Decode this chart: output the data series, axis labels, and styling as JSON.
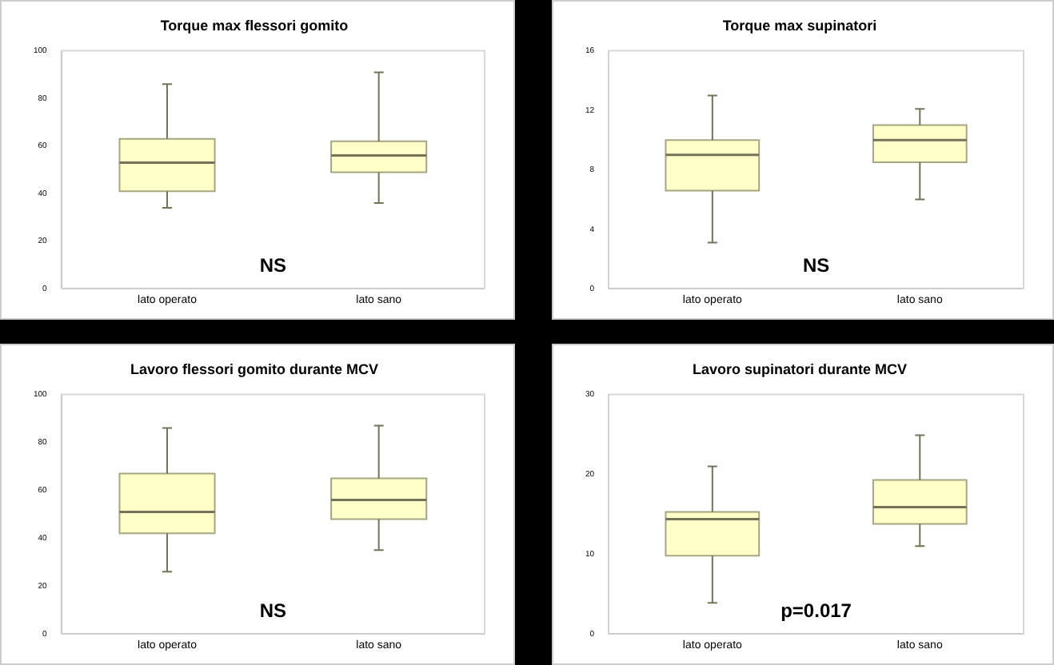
{
  "chart_data": [
    {
      "type": "box",
      "title": "Torque max flessori gomito",
      "categories": [
        "lato operato",
        "lato sano"
      ],
      "ylim": [
        0,
        100
      ],
      "yticks": [
        0,
        20,
        40,
        60,
        80,
        100
      ],
      "grid": false,
      "annotations": [
        "NS"
      ],
      "series": [
        {
          "color": "#ffffc8",
          "boxes": [
            {
              "low": 34,
              "q1": 41,
              "median": 53,
              "q3": 63,
              "high": 86
            },
            {
              "low": 36,
              "q1": 49,
              "median": 56,
              "q3": 62,
              "high": 91
            }
          ]
        }
      ]
    },
    {
      "type": "box",
      "title": "Torque max supinatori",
      "categories": [
        "lato operato",
        "lato sano"
      ],
      "ylim": [
        0,
        16
      ],
      "yticks": [
        0,
        4,
        8,
        12,
        16
      ],
      "grid": false,
      "annotations": [
        "NS"
      ],
      "series": [
        {
          "color": "#ffffc8",
          "boxes": [
            {
              "low": 3.1,
              "q1": 6.6,
              "median": 9,
              "q3": 10,
              "high": 13
            },
            {
              "low": 6,
              "q1": 8.5,
              "median": 10,
              "q3": 11,
              "high": 12.1
            }
          ]
        }
      ]
    },
    {
      "type": "box",
      "title": "Lavoro flessori gomito durante MCV",
      "categories": [
        "lato operato",
        "lato sano"
      ],
      "ylim": [
        0,
        100
      ],
      "yticks": [
        0,
        20,
        40,
        60,
        80,
        100
      ],
      "grid": false,
      "annotations": [
        "NS"
      ],
      "series": [
        {
          "color": "#ffffc8",
          "boxes": [
            {
              "low": 26,
              "q1": 42,
              "median": 51,
              "q3": 67,
              "high": 86
            },
            {
              "low": 35,
              "q1": 48,
              "median": 56,
              "q3": 65,
              "high": 87
            }
          ]
        }
      ]
    },
    {
      "type": "box",
      "title": "Lavoro supinatori durante MCV",
      "categories": [
        "lato operato",
        "lato sano"
      ],
      "ylim": [
        0,
        30
      ],
      "yticks": [
        0,
        10,
        20,
        30
      ],
      "grid": false,
      "annotations": [
        "p=0.017"
      ],
      "series": [
        {
          "color": "#ffffc8",
          "boxes": [
            {
              "low": 3.9,
              "q1": 9.8,
              "median": 14.4,
              "q3": 15.3,
              "high": 21
            },
            {
              "low": 11,
              "q1": 13.8,
              "median": 15.9,
              "q3": 19.3,
              "high": 24.9
            }
          ]
        }
      ]
    }
  ]
}
